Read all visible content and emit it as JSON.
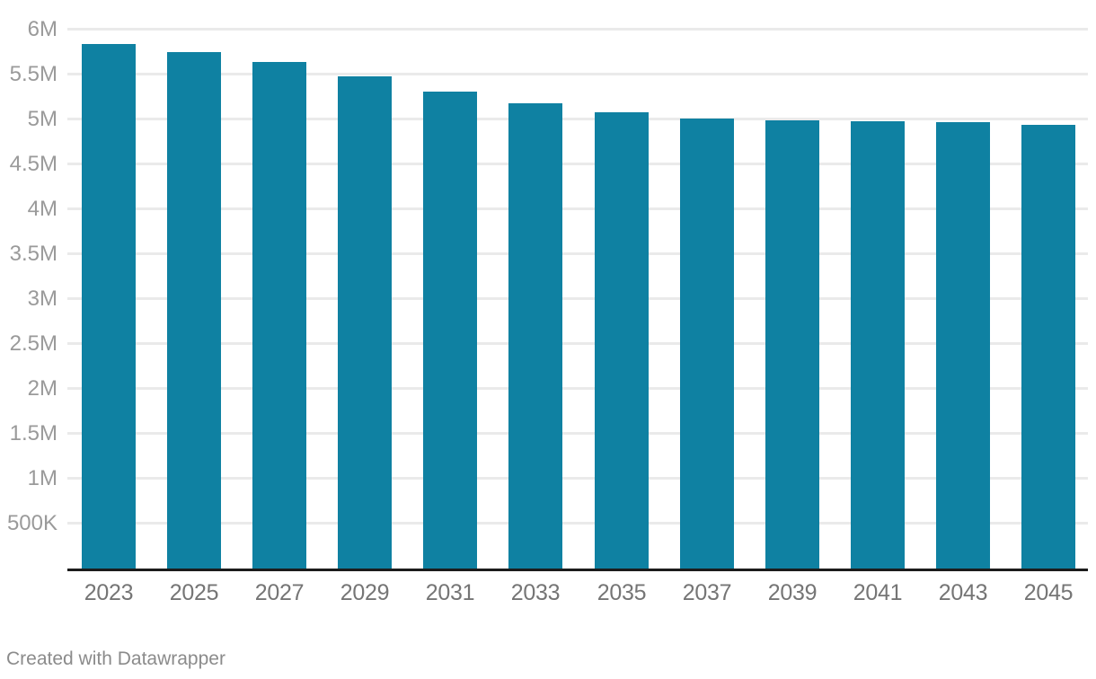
{
  "chart_data": {
    "type": "bar",
    "title": "",
    "xlabel": "",
    "ylabel": "",
    "categories": [
      "2023",
      "2025",
      "2027",
      "2029",
      "2031",
      "2033",
      "2035",
      "2037",
      "2039",
      "2041",
      "2043",
      "2045"
    ],
    "values": [
      5840000,
      5750000,
      5640000,
      5480000,
      5310000,
      5180000,
      5080000,
      5010000,
      4990000,
      4980000,
      4970000,
      4940000
    ],
    "value_labels": [
      "5.84M",
      "5.75M",
      "5.64M",
      "5.48M",
      "5.31M",
      "5.18M",
      "5.08M",
      "5.01M",
      "4.99M",
      "4.98M",
      "4.97M",
      "4.94M"
    ],
    "ylim": [
      0,
      6000000
    ],
    "yticks": [
      {
        "label": "500K",
        "value": 500000
      },
      {
        "label": "1M",
        "value": 1000000
      },
      {
        "label": "1.5M",
        "value": 1500000
      },
      {
        "label": "2M",
        "value": 2000000
      },
      {
        "label": "2.5M",
        "value": 2500000
      },
      {
        "label": "3M",
        "value": 3000000
      },
      {
        "label": "3.5M",
        "value": 3500000
      },
      {
        "label": "4M",
        "value": 4000000
      },
      {
        "label": "4.5M",
        "value": 4500000
      },
      {
        "label": "5M",
        "value": 5000000
      },
      {
        "label": "5.5M",
        "value": 5500000
      },
      {
        "label": "6M",
        "value": 6000000
      }
    ],
    "grid": "horizontal",
    "legend": "none"
  },
  "colors": {
    "bar": "#0f81a2",
    "gridline": "#eaeaea",
    "axis_line": "#1c1c1c",
    "y_tick_text": "#9a9a9a",
    "x_tick_text": "#757575",
    "credit_text": "#8b8b8b",
    "background": "#ffffff"
  },
  "footer": {
    "credit": "Created with Datawrapper"
  }
}
